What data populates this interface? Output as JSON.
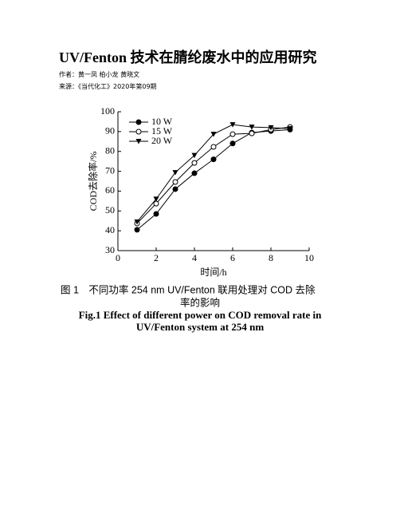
{
  "title": "UV/Fenton 技术在腈纶废水中的应用研究",
  "author": "作者：黄一凤 柏小龙 黄晓文",
  "source": "来源：《当代化工》2020年第09期",
  "chart_data": {
    "type": "line",
    "x_label": "时间/h",
    "y_label": "COD去除率/%",
    "x": [
      1,
      2,
      3,
      4,
      5,
      6,
      7,
      8,
      9
    ],
    "series": [
      {
        "name": "10 W",
        "color": "#000000",
        "marker": "filled-circle",
        "values": [
          40.5,
          48.5,
          61,
          69,
          76,
          84,
          89.5,
          90.3,
          91
        ]
      },
      {
        "name": "15 W",
        "color": "#000000",
        "marker": "open-circle",
        "values": [
          43.7,
          53.7,
          64.6,
          74.2,
          82.3,
          88.7,
          89.1,
          91,
          92.3
        ]
      },
      {
        "name": "20 W",
        "color": "#000000",
        "marker": "triangle-down",
        "values": [
          44.5,
          56,
          69.4,
          78,
          88.7,
          93.5,
          92.3,
          92,
          91.5
        ]
      }
    ],
    "xlim": [
      0,
      10
    ],
    "xticks": [
      0,
      2,
      4,
      6,
      8,
      10
    ],
    "ylim": [
      30,
      100
    ],
    "yticks": [
      30,
      40,
      50,
      60,
      70,
      80,
      90,
      100
    ],
    "legend": "upper-left"
  },
  "caption": {
    "zh": [
      "图 1　不同功率 254 nm UV/Fenton 联用处理对 COD 去除",
      "率的影响"
    ],
    "en": [
      "Fig.1 Effect of different power on COD removal rate in",
      "UV/Fenton system at 254 nm"
    ]
  }
}
